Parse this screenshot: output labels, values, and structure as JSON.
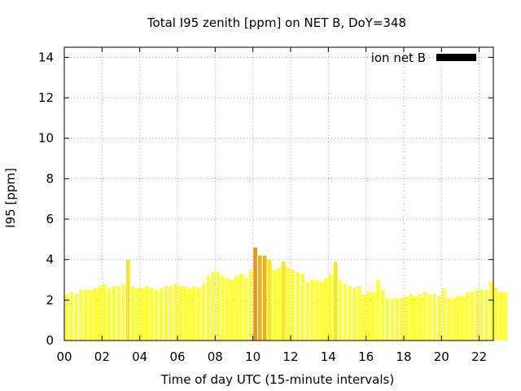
{
  "chart_data": {
    "type": "bar",
    "title": "Total I95 zenith [ppm] on NET B, DoY=348",
    "xlabel": "Time of day UTC (15-minute intervals)",
    "ylabel": "I95 [ppm]",
    "xlim": [
      0,
      22.75
    ],
    "ylim": [
      0,
      14.5
    ],
    "grid": true,
    "legend_position": "top-right",
    "legend": "ion net B",
    "legend_color": "#000000",
    "x_ticks": [
      {
        "v": 0,
        "label": "00"
      },
      {
        "v": 2,
        "label": "02"
      },
      {
        "v": 4,
        "label": "04"
      },
      {
        "v": 6,
        "label": "06"
      },
      {
        "v": 8,
        "label": "08"
      },
      {
        "v": 10,
        "label": "10"
      },
      {
        "v": 12,
        "label": "12"
      },
      {
        "v": 14,
        "label": "14"
      },
      {
        "v": 16,
        "label": "16"
      },
      {
        "v": 18,
        "label": "18"
      },
      {
        "v": 20,
        "label": "20"
      },
      {
        "v": 22,
        "label": "22"
      }
    ],
    "y_ticks": [
      {
        "v": 0,
        "label": "0"
      },
      {
        "v": 2,
        "label": "2"
      },
      {
        "v": 4,
        "label": "4"
      },
      {
        "v": 6,
        "label": "6"
      },
      {
        "v": 8,
        "label": "8"
      },
      {
        "v": 10,
        "label": "10"
      },
      {
        "v": 12,
        "label": "12"
      },
      {
        "v": 14,
        "label": "14"
      }
    ],
    "colors": {
      "normal": "#ffff33",
      "elevated": "#ffe619",
      "high": "#f0b400",
      "peak": "#f09600"
    },
    "bar_interval_hours": 0.25,
    "values": [
      2.3,
      2.4,
      2.3,
      2.5,
      2.5,
      2.5,
      2.6,
      2.7,
      2.8,
      2.6,
      2.7,
      2.7,
      2.8,
      4.0,
      2.7,
      2.6,
      2.6,
      2.7,
      2.6,
      2.5,
      2.6,
      2.7,
      2.7,
      2.8,
      2.7,
      2.7,
      2.6,
      2.7,
      2.6,
      2.8,
      3.2,
      3.4,
      3.4,
      3.2,
      3.1,
      3.0,
      3.2,
      3.3,
      3.1,
      3.5,
      4.6,
      4.2,
      4.2,
      4.0,
      3.5,
      3.6,
      3.9,
      3.6,
      3.5,
      3.4,
      3.3,
      2.9,
      3.0,
      3.0,
      2.9,
      3.1,
      3.3,
      3.9,
      3.0,
      2.8,
      2.7,
      2.6,
      2.7,
      2.3,
      2.4,
      2.4,
      3.0,
      2.5,
      2.1,
      2.1,
      2.1,
      2.1,
      2.2,
      2.3,
      2.2,
      2.3,
      2.4,
      2.3,
      2.3,
      2.2,
      2.6,
      2.1,
      2.1,
      2.2,
      2.2,
      2.4,
      2.4,
      2.5,
      2.5,
      2.5,
      2.9,
      2.6,
      2.4,
      2.4
    ]
  }
}
